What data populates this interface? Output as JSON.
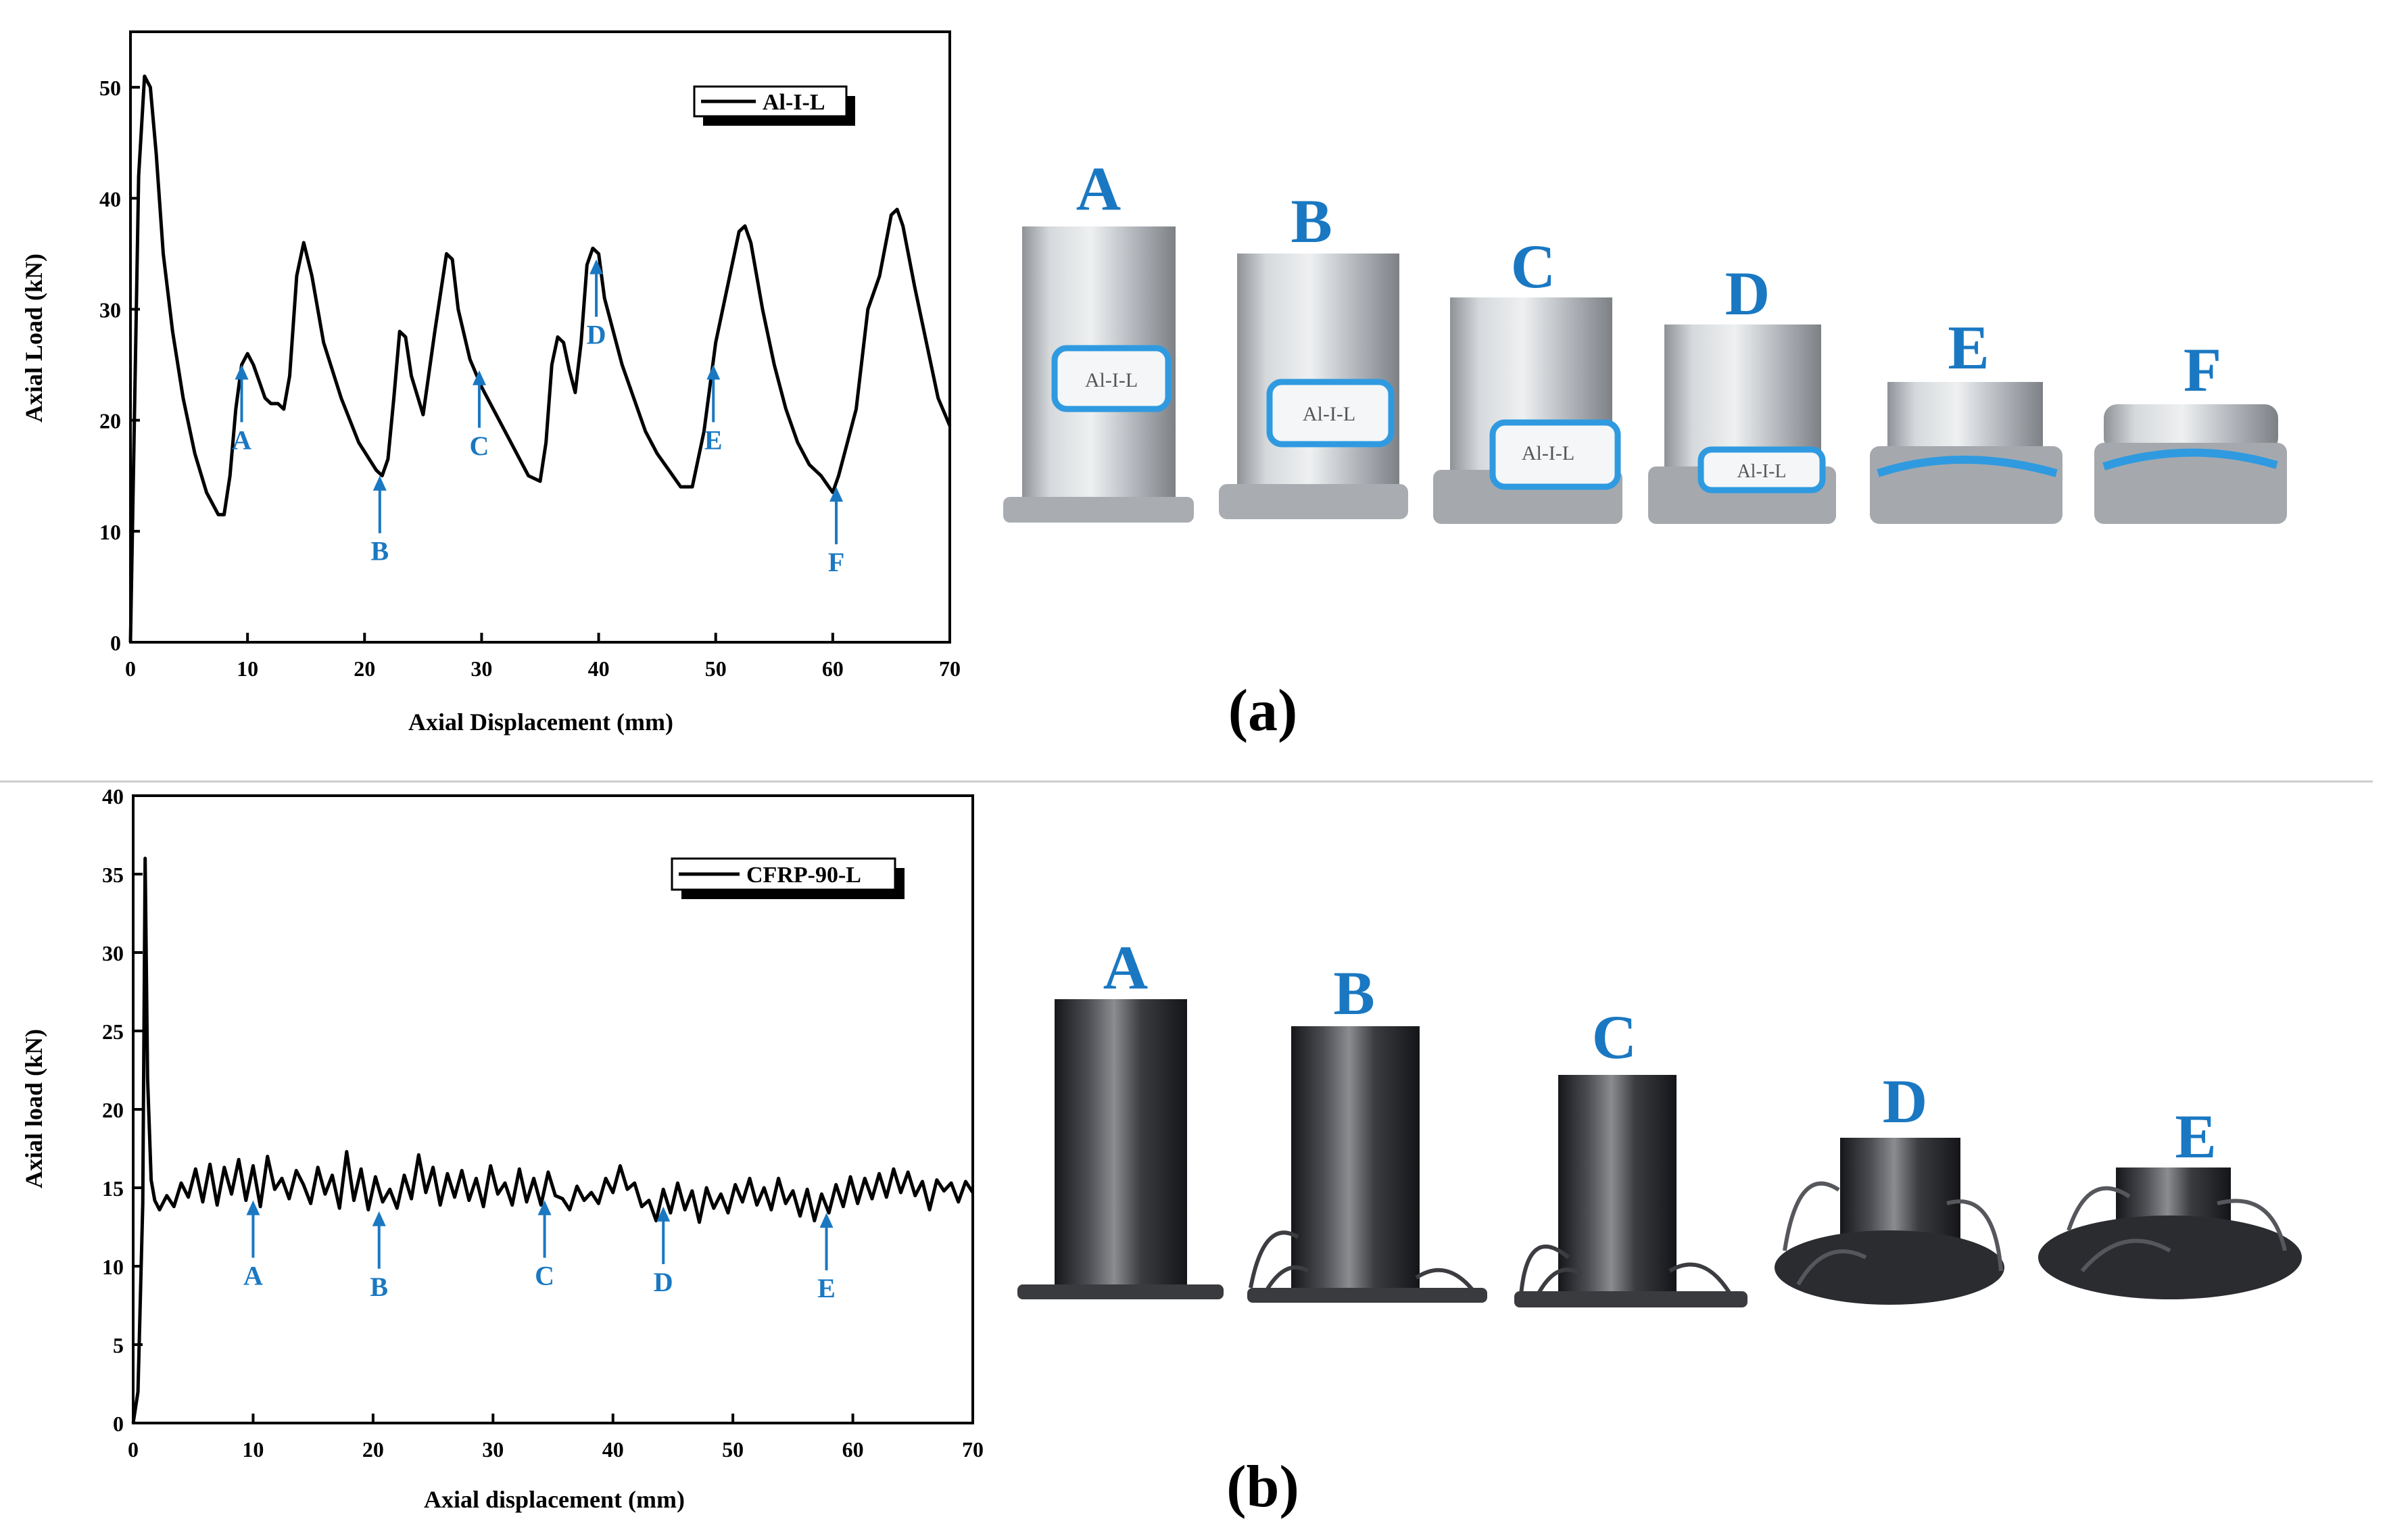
{
  "colors": {
    "curve": "#000000",
    "marker": "#1a78c2",
    "label_blue": "#1a78c2",
    "divider": "#cccccc",
    "aluminium": "#c9ccd0",
    "cfrp": "#2e2f33",
    "tape": "#2f9ae0"
  },
  "panels": [
    {
      "id": "a",
      "panel_label": "(a)",
      "photo_labels": [
        "A",
        "B",
        "C",
        "D",
        "E",
        "F"
      ],
      "photo_material": "aluminium",
      "photo_tube_text": "Al-I-L"
    },
    {
      "id": "b",
      "panel_label": "(b)",
      "photo_labels": [
        "A",
        "B",
        "C",
        "D",
        "E"
      ],
      "photo_material": "cfrp"
    }
  ],
  "chart_data": [
    {
      "type": "line",
      "xlabel": "Axial Displacement (mm)",
      "ylabel": "Axial Load (kN)",
      "xlim": [
        0,
        70
      ],
      "ylim": [
        0,
        55
      ],
      "xticks": [
        0,
        10,
        20,
        30,
        40,
        50,
        60,
        70
      ],
      "yticks": [
        0,
        10,
        20,
        30,
        40,
        50
      ],
      "grid": false,
      "legend": "top-right",
      "series": [
        {
          "name": "Al-I-L",
          "x": [
            0,
            0.3,
            0.7,
            1.2,
            1.7,
            2.2,
            2.8,
            3.6,
            4.5,
            5.5,
            6.5,
            7.5,
            8,
            8.5,
            9,
            9.5,
            10,
            10.5,
            11,
            11.5,
            12,
            12.6,
            13.1,
            13.6,
            14.2,
            14.8,
            15.5,
            16.5,
            18,
            19.5,
            21,
            21.5,
            22,
            22.5,
            23,
            23.5,
            24,
            25,
            26,
            27,
            27.5,
            28,
            29,
            30,
            31,
            32,
            33,
            34,
            35,
            35.5,
            36,
            36.5,
            37,
            37.5,
            38,
            38.5,
            39,
            39.5,
            40,
            40.5,
            41,
            42,
            43,
            44,
            45,
            46,
            47,
            48,
            49,
            50,
            51,
            52,
            52.5,
            53,
            54,
            55,
            56,
            57,
            58,
            59,
            60,
            60.5,
            61,
            62,
            63,
            64,
            65,
            65.5,
            66,
            67,
            68,
            69,
            70
          ],
          "y": [
            0,
            18,
            42,
            51,
            50,
            44,
            35,
            28,
            22,
            17,
            13.5,
            11.5,
            11.5,
            15,
            21,
            25,
            26,
            25,
            23.5,
            22,
            21.5,
            21.5,
            21,
            24,
            33,
            36,
            33,
            27,
            22,
            18,
            15.5,
            15,
            16.5,
            22,
            28,
            27.5,
            24,
            20.5,
            28,
            35,
            34.5,
            30,
            25.5,
            23,
            21,
            19,
            17,
            15,
            14.5,
            18,
            25,
            27.5,
            27,
            24.5,
            22.5,
            27,
            34,
            35.5,
            35,
            31,
            29,
            25,
            22,
            19,
            17,
            15.5,
            14,
            14,
            19,
            27,
            32,
            37,
            37.5,
            36,
            30,
            25,
            21,
            18,
            16,
            15,
            13.5,
            15,
            17,
            21,
            30,
            33,
            38.5,
            39,
            37.5,
            32,
            27,
            22,
            19.5
          ]
        }
      ],
      "annotations": [
        {
          "label": "A",
          "x": 9.5,
          "y": 25
        },
        {
          "label": "B",
          "x": 21.3,
          "y": 15
        },
        {
          "label": "C",
          "x": 29.8,
          "y": 24.5
        },
        {
          "label": "D",
          "x": 39.8,
          "y": 34.5
        },
        {
          "label": "E",
          "x": 49.8,
          "y": 25
        },
        {
          "label": "F",
          "x": 60.3,
          "y": 14
        }
      ]
    },
    {
      "type": "line",
      "xlabel": "Axial displacement (mm)",
      "ylabel": "Axial load (kN)",
      "xlim": [
        0,
        70
      ],
      "ylim": [
        0,
        40
      ],
      "xticks": [
        0,
        10,
        20,
        30,
        40,
        50,
        60,
        70
      ],
      "yticks": [
        0,
        5,
        10,
        15,
        20,
        25,
        30,
        35,
        40
      ],
      "grid": false,
      "legend": "top-right",
      "series": [
        {
          "name": "CFRP-90-L",
          "x": [
            0,
            0.4,
            0.8,
            1.0,
            1.2,
            1.5,
            1.8,
            2.2,
            2.8,
            3.4,
            4.0,
            4.6,
            5.2,
            5.8,
            6.4,
            7.0,
            7.6,
            8.2,
            8.8,
            9.4,
            10.0,
            10.6,
            11.2,
            11.8,
            12.4,
            13.0,
            13.6,
            14.2,
            14.8,
            15.4,
            16.0,
            16.6,
            17.2,
            17.8,
            18.4,
            19.0,
            19.6,
            20.2,
            20.8,
            21.4,
            22.0,
            22.6,
            23.2,
            23.8,
            24.4,
            25.0,
            25.6,
            26.2,
            26.8,
            27.4,
            28.0,
            28.6,
            29.2,
            29.8,
            30.4,
            31.0,
            31.6,
            32.2,
            32.8,
            33.4,
            34.0,
            34.6,
            35.2,
            35.8,
            36.4,
            37.0,
            37.6,
            38.2,
            38.8,
            39.4,
            40.0,
            40.6,
            41.2,
            41.8,
            42.4,
            43.0,
            43.6,
            44.2,
            44.8,
            45.4,
            46.0,
            46.6,
            47.2,
            47.8,
            48.4,
            49.0,
            49.6,
            50.2,
            50.8,
            51.4,
            52.0,
            52.6,
            53.2,
            53.8,
            54.4,
            55.0,
            55.6,
            56.2,
            56.8,
            57.4,
            58.0,
            58.6,
            59.2,
            59.8,
            60.4,
            61.0,
            61.6,
            62.2,
            62.8,
            63.4,
            64.0,
            64.6,
            65.2,
            65.8,
            66.4,
            67.0,
            67.6,
            68.2,
            68.8,
            69.4,
            70.0
          ],
          "y": [
            0,
            2,
            14,
            36,
            22,
            15.5,
            14.2,
            13.6,
            14.5,
            13.8,
            15.3,
            14.4,
            16.2,
            14.1,
            16.5,
            13.9,
            16.3,
            14.6,
            16.8,
            14.2,
            16.4,
            13.8,
            17.0,
            14.9,
            15.6,
            14.3,
            16.1,
            15.2,
            14.0,
            16.3,
            14.6,
            15.8,
            13.7,
            17.3,
            14.2,
            16.2,
            13.6,
            15.7,
            14.1,
            14.9,
            13.7,
            15.8,
            14.3,
            17.1,
            14.7,
            16.3,
            13.9,
            15.9,
            14.4,
            16.1,
            14.2,
            15.6,
            13.8,
            16.4,
            14.6,
            15.3,
            13.9,
            16.2,
            14.1,
            15.6,
            13.9,
            16.0,
            14.5,
            14.3,
            13.6,
            15.1,
            14.2,
            14.7,
            14.0,
            15.6,
            14.7,
            16.4,
            14.9,
            15.3,
            13.8,
            14.2,
            12.9,
            14.9,
            13.4,
            15.3,
            13.6,
            14.8,
            12.8,
            15.0,
            13.7,
            14.6,
            13.4,
            15.2,
            14.1,
            15.6,
            13.9,
            15.0,
            13.6,
            15.6,
            14.0,
            14.8,
            13.2,
            14.9,
            12.9,
            14.6,
            13.4,
            15.2,
            13.8,
            15.7,
            14.0,
            15.6,
            14.3,
            15.9,
            14.4,
            16.2,
            14.7,
            16.0,
            14.5,
            15.4,
            13.6,
            15.5,
            14.8,
            15.3,
            14.1,
            15.4,
            14.7
          ]
        }
      ],
      "annotations": [
        {
          "label": "A",
          "x": 10,
          "y": 14.2
        },
        {
          "label": "B",
          "x": 20.5,
          "y": 13.5
        },
        {
          "label": "C",
          "x": 34.3,
          "y": 14.2
        },
        {
          "label": "D",
          "x": 44.2,
          "y": 13.8
        },
        {
          "label": "E",
          "x": 57.8,
          "y": 13.4
        }
      ]
    }
  ]
}
